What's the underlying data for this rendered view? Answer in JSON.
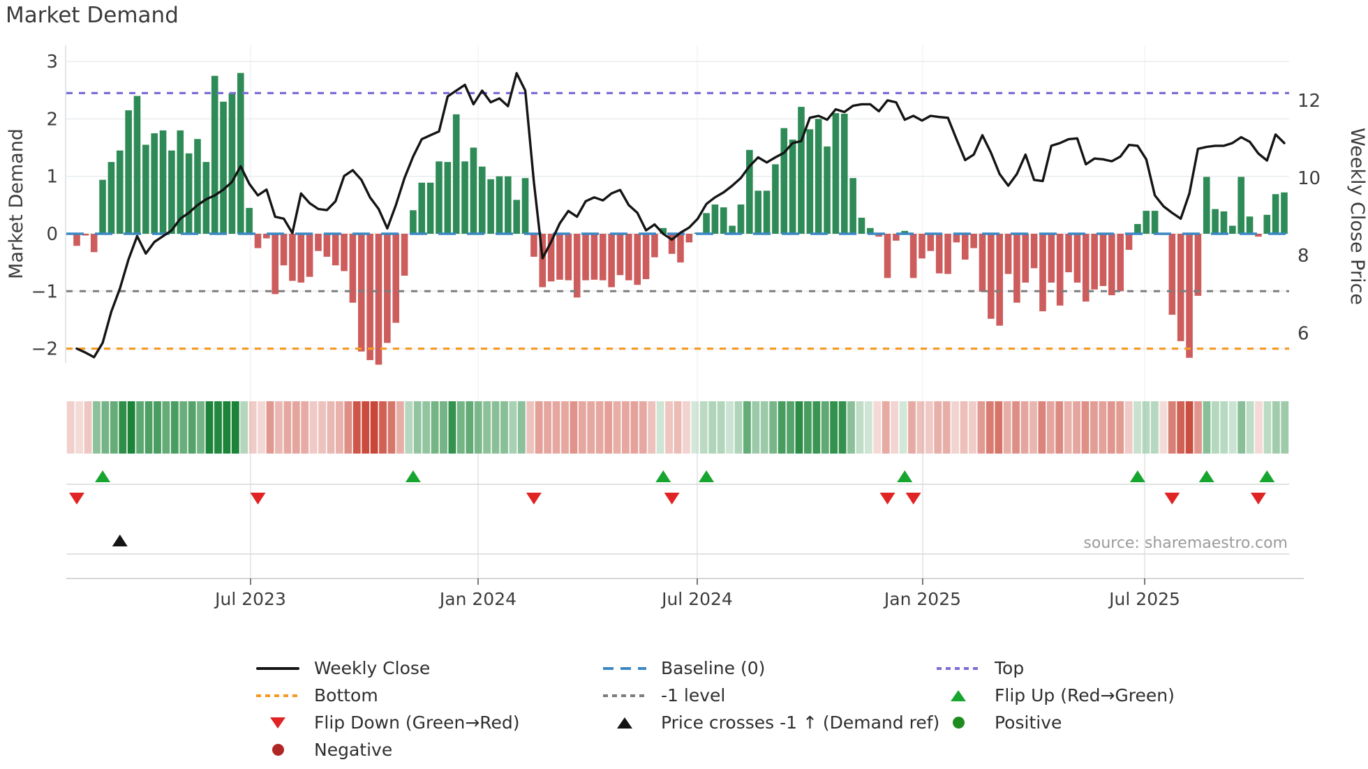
{
  "title": "Market Demand",
  "source_note": "source: sharemaestro.com",
  "axes": {
    "left_label": "Market Demand",
    "right_label": "Weekly Close Price",
    "left_ticks": [
      {
        "label": "3",
        "value": 3
      },
      {
        "label": "2",
        "value": 2
      },
      {
        "label": "1",
        "value": 1
      },
      {
        "label": "0",
        "value": 0
      },
      {
        "label": "−1",
        "value": -1
      },
      {
        "label": "−2",
        "value": -2
      }
    ],
    "right_ticks": [
      {
        "label": "12",
        "value": 12
      },
      {
        "label": "10",
        "value": 10
      },
      {
        "label": "8",
        "value": 8
      },
      {
        "label": "6",
        "value": 6
      }
    ],
    "x_ticks": [
      {
        "label": "Jul 2023",
        "week": 20.15
      },
      {
        "label": "Jan 2024",
        "week": 46.53
      },
      {
        "label": "Jul 2024",
        "week": 71.94
      },
      {
        "label": "Jan 2025",
        "week": 98.08
      },
      {
        "label": "Jul 2025",
        "week": 123.82
      }
    ]
  },
  "chart_data": {
    "type": "bar+line",
    "x_unit": "week",
    "n_weeks": 141,
    "x_range_note": "weekly data, ~Feb 2023 to ~Nov 2025",
    "left_ylim": [
      -2.6,
      3.25
    ],
    "right_ylim": [
      5.2,
      13.4
    ],
    "grid": "horizontal-on",
    "demand_bars": [
      -0.21,
      -0.03,
      -0.32,
      0.94,
      1.25,
      1.45,
      2.15,
      2.4,
      1.55,
      1.75,
      1.8,
      1.45,
      1.8,
      1.4,
      1.65,
      1.25,
      2.75,
      2.3,
      2.45,
      2.8,
      0.45,
      -0.25,
      -0.08,
      -1.05,
      -0.55,
      -0.82,
      -0.85,
      -0.75,
      -0.3,
      -0.4,
      -0.55,
      -0.65,
      -1.2,
      -2.05,
      -2.2,
      -2.28,
      -1.9,
      -1.55,
      -0.73,
      0.41,
      0.89,
      0.89,
      1.26,
      1.25,
      2.08,
      1.26,
      1.5,
      1.17,
      0.95,
      1.0,
      1.0,
      0.59,
      0.97,
      -0.4,
      -0.93,
      -0.83,
      -0.8,
      -0.81,
      -1.11,
      -0.81,
      -0.8,
      -0.81,
      -0.93,
      -0.72,
      -0.81,
      -0.89,
      -0.79,
      -0.41,
      0.1,
      -0.35,
      -0.5,
      -0.15,
      0.02,
      0.36,
      0.51,
      0.46,
      0.14,
      0.51,
      1.46,
      0.75,
      0.75,
      1.21,
      1.84,
      1.64,
      2.21,
      1.82,
      2.0,
      1.52,
      2.1,
      2.09,
      0.97,
      0.28,
      0.1,
      -0.05,
      -0.77,
      -0.12,
      0.05,
      -0.77,
      -0.43,
      -0.3,
      -0.69,
      -0.7,
      -0.15,
      -0.45,
      -0.25,
      -1.01,
      -1.48,
      -1.6,
      -0.7,
      -1.2,
      -0.85,
      -0.6,
      -1.35,
      -0.85,
      -1.25,
      -0.67,
      -0.85,
      -1.18,
      -0.97,
      -0.91,
      -1.07,
      -1.0,
      -0.28,
      0.17,
      0.4,
      0.4,
      -0.02,
      -1.41,
      -1.87,
      -2.16,
      -1.08,
      0.99,
      0.43,
      0.39,
      0.14,
      0.99,
      0.3,
      -0.05,
      0.33,
      0.69,
      0.72
    ],
    "weekly_close": [
      5.6,
      5.5,
      5.38,
      5.75,
      6.55,
      7.15,
      7.9,
      8.5,
      8.05,
      8.35,
      8.5,
      8.65,
      8.95,
      9.1,
      9.3,
      9.45,
      9.55,
      9.7,
      9.9,
      10.3,
      9.85,
      9.55,
      9.7,
      9.0,
      8.95,
      8.58,
      9.6,
      9.35,
      9.2,
      9.17,
      9.4,
      10.05,
      10.2,
      9.95,
      9.5,
      9.2,
      8.7,
      9.3,
      10.0,
      10.55,
      11.0,
      11.1,
      11.2,
      12.1,
      12.25,
      12.4,
      11.9,
      12.25,
      11.95,
      12.05,
      11.85,
      12.7,
      12.25,
      9.9,
      7.93,
      8.35,
      8.83,
      9.15,
      9.0,
      9.4,
      9.5,
      9.42,
      9.6,
      9.69,
      9.3,
      9.1,
      8.65,
      8.8,
      8.56,
      8.41,
      8.59,
      8.72,
      8.95,
      9.33,
      9.5,
      9.63,
      9.8,
      10.0,
      10.3,
      10.53,
      10.4,
      10.53,
      10.65,
      10.9,
      10.95,
      11.55,
      11.6,
      11.5,
      11.77,
      11.7,
      11.86,
      11.9,
      11.9,
      11.72,
      12.0,
      11.95,
      11.5,
      11.6,
      11.48,
      11.6,
      11.57,
      11.55,
      11.0,
      10.46,
      10.6,
      11.1,
      10.65,
      10.1,
      9.8,
      10.1,
      10.6,
      9.95,
      9.92,
      10.83,
      10.9,
      11.0,
      11.02,
      10.35,
      10.5,
      10.48,
      10.43,
      10.55,
      10.85,
      10.83,
      10.48,
      9.55,
      9.27,
      9.1,
      8.95,
      9.6,
      10.75,
      10.8,
      10.83,
      10.83,
      10.9,
      11.05,
      10.93,
      10.63,
      10.45,
      11.12,
      10.9
    ],
    "reference_lines": {
      "baseline": 0,
      "top": 2.45,
      "bottom": -2.0,
      "minus1": -1.0
    },
    "markers": {
      "flip_up_weeks": [
        3,
        39,
        68,
        73,
        96,
        123,
        131,
        138
      ],
      "flip_down_weeks": [
        0,
        21,
        53,
        69,
        94,
        97,
        127,
        137
      ],
      "price_cross_weeks": [
        5
      ]
    },
    "heatmap_note": "weekly strip, green intensity = positive demand, red intensity = negative demand"
  },
  "legend": {
    "items": [
      {
        "label": "Weekly Close",
        "symbol": "line",
        "color": "#141414",
        "col": 1,
        "row": 1
      },
      {
        "label": "Baseline (0)",
        "symbol": "dash",
        "color": "#3c87c3",
        "col": 2,
        "row": 1
      },
      {
        "label": "Top",
        "symbol": "dot",
        "color": "#7a6ed6",
        "col": 3,
        "row": 1
      },
      {
        "label": "Bottom",
        "symbol": "dot",
        "color": "#f59a23",
        "col": 1,
        "row": 2
      },
      {
        "label": "-1 level",
        "symbol": "dot",
        "color": "#7d7d7d",
        "col": 2,
        "row": 2
      },
      {
        "label": "Flip Up (Red→Green)",
        "symbol": "tri-up",
        "color": "#16a52f",
        "col": 3,
        "row": 2
      },
      {
        "label": "Flip Down (Green→Red)",
        "symbol": "tri-down",
        "color": "#e02424",
        "col": 1,
        "row": 3
      },
      {
        "label": "Price crosses -1 ↑ (Demand ref)",
        "symbol": "tri-up",
        "color": "#141414",
        "col": 2,
        "row": 3
      },
      {
        "label": "Positive",
        "symbol": "circle",
        "color": "#1e8c1e",
        "col": 3,
        "row": 3
      },
      {
        "label": "Negative",
        "symbol": "circle",
        "color": "#b02525",
        "col": 1,
        "row": 4
      }
    ]
  },
  "colors": {
    "bar_positive": "#2e8b57",
    "bar_negative": "#cd5c5c",
    "price_line": "#141414",
    "baseline": "#3c87c3",
    "top_line": "#7a6ed6",
    "bottom_line": "#f59a23",
    "minus1_line": "#7d7d7d",
    "flip_up": "#16a52f",
    "flip_down": "#e02424",
    "price_cross": "#141414",
    "heat_positive": "27,132,56",
    "heat_negative": "198,63,48",
    "grid": "#e9ecef",
    "axis_line": "#c8c8c8",
    "tick_text": "#3c3c3c",
    "title_text": "#3a3a3a",
    "source_text": "#9a9a9a"
  }
}
